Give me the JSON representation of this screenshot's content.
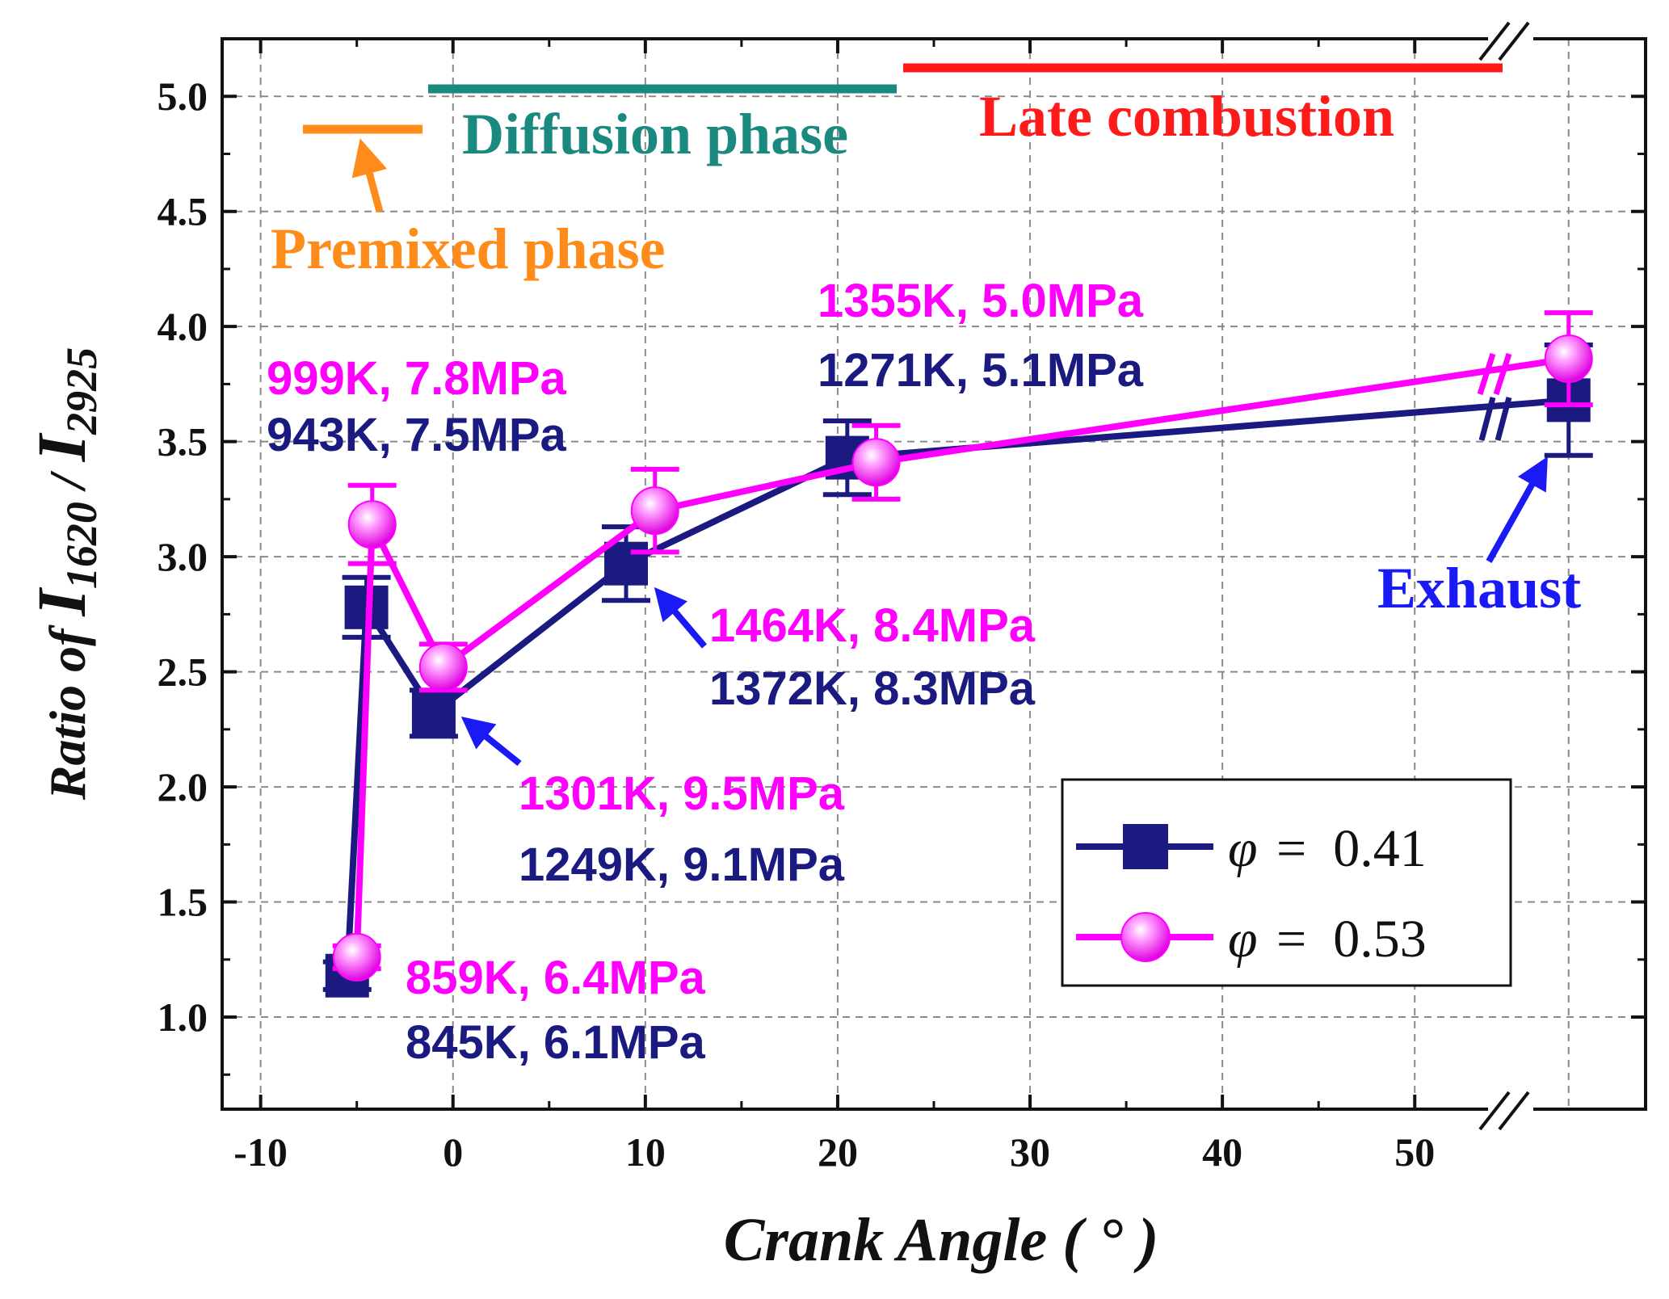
{
  "chart_data": {
    "type": "line",
    "xlabel": "Crank Angle ( ° )",
    "ylabel": "Ratio of I1620 / I2925",
    "ylabel_parts": {
      "prefix": "Ratio of ",
      "num_var": "I",
      "num_sub": "1620",
      "sep": " / ",
      "den_var": "I",
      "den_sub": "2925"
    },
    "xlim": [
      -12,
      62
    ],
    "ylim": [
      0.6,
      5.25
    ],
    "x_broken_after": 55,
    "x_ticks": [
      -10,
      0,
      10,
      20,
      30,
      40,
      50
    ],
    "x_tick_labels": [
      "-10",
      "0",
      "10",
      "20",
      "30",
      "40",
      "50"
    ],
    "y_ticks": [
      1.0,
      1.5,
      2.0,
      2.5,
      3.0,
      3.5,
      4.0,
      4.5,
      5.0
    ],
    "y_tick_labels": [
      "1.0",
      "1.5",
      "2.0",
      "2.5",
      "3.0",
      "3.5",
      "4.0",
      "4.5",
      "5.0"
    ],
    "grid": true,
    "legend_position": "bottom-right",
    "series": [
      {
        "name": "φ = 0.41",
        "legend_symbol": "φ",
        "legend_value": "=  0.41",
        "color": "#1a1a80",
        "marker": "square",
        "x": [
          -5.5,
          -4.5,
          -1,
          9,
          20.5,
          58
        ],
        "y": [
          1.18,
          2.78,
          2.32,
          2.97,
          3.43,
          3.68
        ],
        "err": [
          0.06,
          0.13,
          0.1,
          0.16,
          0.16,
          0.24
        ]
      },
      {
        "name": "φ = 0.53",
        "legend_symbol": "φ",
        "legend_value": "=  0.53",
        "color": "#ff00ff",
        "marker": "circle",
        "x": [
          -5,
          -4.2,
          -0.5,
          10.5,
          22,
          58
        ],
        "y": [
          1.26,
          3.14,
          2.52,
          3.2,
          3.41,
          3.86
        ],
        "err": [
          0.05,
          0.17,
          0.1,
          0.18,
          0.16,
          0.2
        ]
      }
    ],
    "phases": [
      {
        "label": "Premixed phase",
        "color": "#ff8c1a",
        "x_start": -8,
        "x_end": -1.5,
        "y": 4.92
      },
      {
        "label": "Diffusion phase",
        "color": "#1a8a80",
        "x_start": -1.5,
        "x_end": 23,
        "y": 5.03
      },
      {
        "label": "Late combustion",
        "color": "#ff1a1a",
        "x_start": 23.5,
        "x_end": 55,
        "y": 5.13
      }
    ],
    "annotations": [
      {
        "magenta": "999K, 7.8MPa",
        "navy": "943K, 7.5MPa",
        "point": "x=-4"
      },
      {
        "magenta": "859K, 6.4MPa",
        "navy": "845K, 6.1MPa",
        "point": "x=-5"
      },
      {
        "magenta": "1301K, 9.5MPa",
        "navy": "1249K, 9.1MPa",
        "point": "x=0"
      },
      {
        "magenta": "1464K, 8.4MPa",
        "navy": "1372K, 8.3MPa",
        "point": "x=10"
      },
      {
        "magenta": "1355K, 5.0MPa",
        "navy": "1271K, 5.1MPa",
        "point": "x=21"
      }
    ],
    "exhaust_label": "Exhaust",
    "colors": {
      "magenta": "#ff00ff",
      "navy": "#1a1a80",
      "arrow_blue": "#1a1af5"
    }
  }
}
